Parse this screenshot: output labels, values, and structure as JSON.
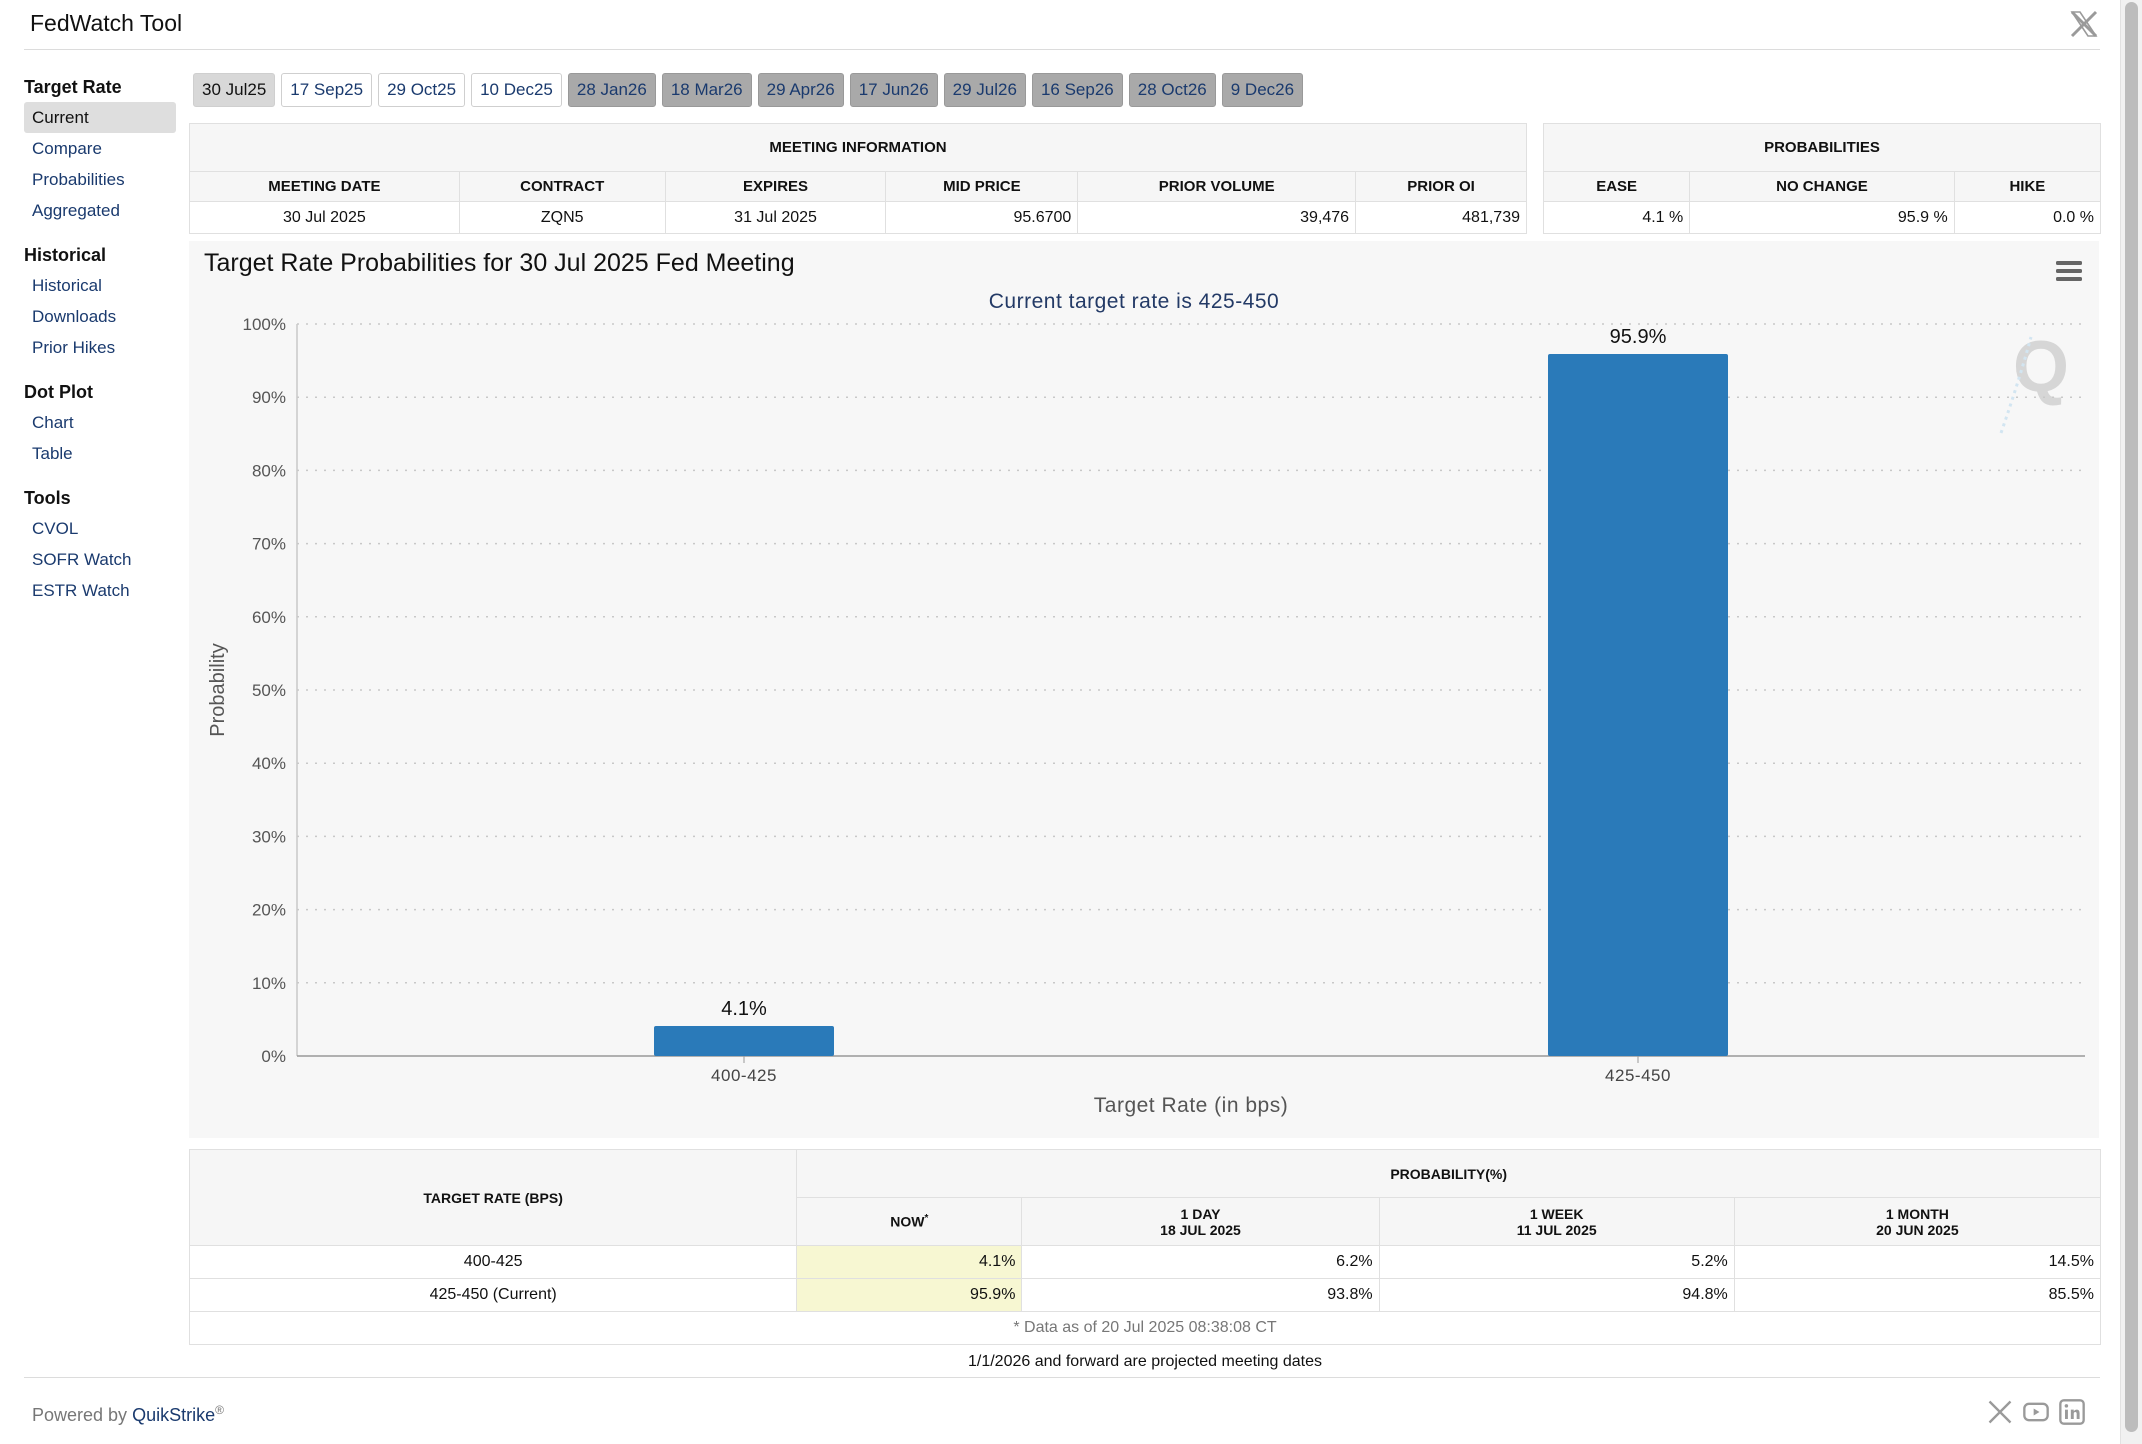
{
  "app": {
    "title": "FedWatch Tool"
  },
  "sidebar": {
    "groups": [
      {
        "label": "Target Rate",
        "items": [
          {
            "label": "Current"
          },
          {
            "label": "Compare"
          },
          {
            "label": "Probabilities"
          },
          {
            "label": "Aggregated"
          }
        ]
      },
      {
        "label": "Historical",
        "items": [
          {
            "label": "Historical"
          },
          {
            "label": "Downloads"
          },
          {
            "label": "Prior Hikes"
          }
        ]
      },
      {
        "label": "Dot Plot",
        "items": [
          {
            "label": "Chart"
          },
          {
            "label": "Table"
          }
        ]
      },
      {
        "label": "Tools",
        "items": [
          {
            "label": "CVOL"
          },
          {
            "label": "SOFR Watch"
          },
          {
            "label": "ESTR Watch"
          }
        ]
      }
    ]
  },
  "tabs": [
    {
      "label": "30 Jul25"
    },
    {
      "label": "17 Sep25"
    },
    {
      "label": "29 Oct25"
    },
    {
      "label": "10 Dec25"
    },
    {
      "label": "28 Jan26"
    },
    {
      "label": "18 Mar26"
    },
    {
      "label": "29 Apr26"
    },
    {
      "label": "17 Jun26"
    },
    {
      "label": "29 Jul26"
    },
    {
      "label": "16 Sep26"
    },
    {
      "label": "28 Oct26"
    },
    {
      "label": "9 Dec26"
    }
  ],
  "meeting_info": {
    "caption": "MEETING INFORMATION",
    "headers": [
      "MEETING DATE",
      "CONTRACT",
      "EXPIRES",
      "MID PRICE",
      "PRIOR VOLUME",
      "PRIOR OI"
    ],
    "row": [
      "30 Jul 2025",
      "ZQN5",
      "31 Jul 2025",
      "95.6700",
      "39,476",
      "481,739"
    ]
  },
  "probabilities": {
    "caption": "PROBABILITIES",
    "headers": [
      "EASE",
      "NO CHANGE",
      "HIKE"
    ],
    "row": [
      "4.1 %",
      "95.9 %",
      "0.0 %"
    ]
  },
  "chart_data": {
    "type": "bar",
    "title": "Target Rate Probabilities for 30 Jul 2025 Fed Meeting",
    "subtitle": "Current target rate is 425-450",
    "categories": [
      "400-425",
      "425-450"
    ],
    "values": [
      4.1,
      95.9
    ],
    "data_labels": [
      "4.1%",
      "95.9%"
    ],
    "xlabel": "Target Rate (in bps)",
    "ylabel": "Probability",
    "ylim": [
      0,
      100
    ],
    "yticks": [
      "0%",
      "10%",
      "20%",
      "30%",
      "40%",
      "50%",
      "60%",
      "70%",
      "80%",
      "90%",
      "100%"
    ],
    "grid": true,
    "bar_color": "#2a7ab9"
  },
  "prob_table": {
    "rate_header": "TARGET RATE (BPS)",
    "prob_header": "PROBABILITY(%)",
    "now_header": "NOW",
    "now_mark": "*",
    "cols": [
      {
        "label": "1 DAY",
        "date": "18 JUL 2025"
      },
      {
        "label": "1 WEEK",
        "date": "11 JUL 2025"
      },
      {
        "label": "1 MONTH",
        "date": "20 JUN 2025"
      }
    ],
    "rows": [
      {
        "rate": "400-425",
        "now": "4.1%",
        "vals": [
          "6.2%",
          "5.2%",
          "14.5%"
        ]
      },
      {
        "rate": "425-450 (Current)",
        "now": "95.9%",
        "vals": [
          "93.8%",
          "94.8%",
          "85.5%"
        ]
      }
    ],
    "footnote": "* Data as of 20 Jul 2025 08:38:08 CT"
  },
  "projected_note": "1/1/2026 and forward are projected meeting dates",
  "footer": {
    "powered": "Powered by ",
    "brand": "QuikStrike",
    "reg": "®"
  }
}
